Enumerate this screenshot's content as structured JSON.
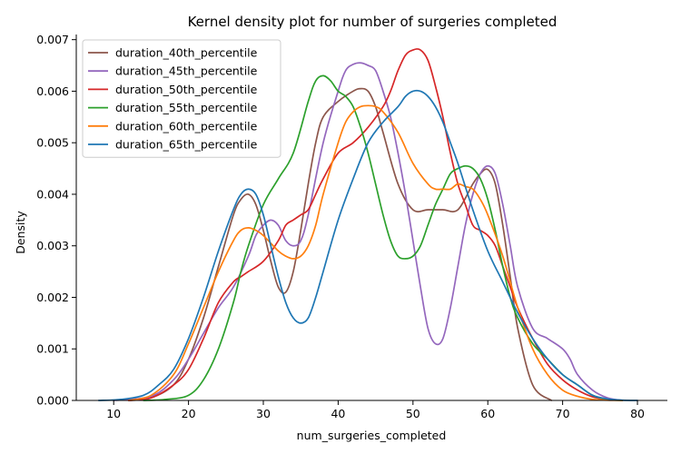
{
  "chart_data": {
    "type": "line",
    "title": "Kernel density plot for number of surgeries completed",
    "xlabel": "num_surgeries_completed",
    "ylabel": "Density",
    "xlim": [
      5,
      84
    ],
    "ylim": [
      0,
      0.0071
    ],
    "xticks": [
      10,
      20,
      30,
      40,
      50,
      60,
      70,
      80
    ],
    "yticks": [
      0.0,
      0.001,
      0.002,
      0.003,
      0.004,
      0.005,
      0.006,
      0.007
    ],
    "ytick_labels": [
      "0.000",
      "0.001",
      "0.002",
      "0.003",
      "0.004",
      "0.005",
      "0.006",
      "0.007"
    ],
    "grid": false,
    "legend_position": "top-left",
    "series": [
      {
        "name": "duration_40th_percentile",
        "color": "#8c564b",
        "x": [
          12,
          15,
          18,
          20,
          22,
          24,
          26,
          27,
          28,
          29,
          30,
          31,
          32,
          33,
          34,
          35,
          36,
          37,
          38,
          40,
          42,
          43,
          44,
          45,
          46,
          48,
          50,
          52,
          54,
          56,
          58,
          59,
          60,
          61,
          62,
          63,
          64,
          66,
          68.5
        ],
        "y": [
          0,
          5e-05,
          0.0003,
          0.0008,
          0.0016,
          0.0026,
          0.0036,
          0.0039,
          0.004,
          0.0038,
          0.0033,
          0.0027,
          0.0022,
          0.0021,
          0.0025,
          0.0033,
          0.0042,
          0.005,
          0.0055,
          0.0058,
          0.006,
          0.00605,
          0.006,
          0.0057,
          0.0052,
          0.0042,
          0.0037,
          0.0037,
          0.0037,
          0.0037,
          0.0042,
          0.0044,
          0.00448,
          0.0042,
          0.0034,
          0.0024,
          0.0014,
          0.0003,
          0
        ]
      },
      {
        "name": "duration_45th_percentile",
        "color": "#9467bd",
        "x": [
          10,
          15,
          18,
          20,
          22,
          24,
          26,
          28,
          29,
          30,
          31,
          32,
          33,
          34,
          35,
          36,
          38,
          40,
          41,
          42,
          43,
          44,
          45,
          46,
          47,
          48,
          49,
          50,
          51,
          52,
          53,
          54,
          55,
          56,
          57,
          58,
          59,
          60,
          61,
          62,
          63,
          64,
          66,
          68,
          70,
          71,
          72,
          74,
          76,
          78
        ],
        "y": [
          0,
          8e-05,
          0.0004,
          0.0008,
          0.0013,
          0.0018,
          0.0022,
          0.0028,
          0.0032,
          0.0034,
          0.0035,
          0.0034,
          0.0031,
          0.003,
          0.0031,
          0.0036,
          0.005,
          0.006,
          0.0064,
          0.00652,
          0.00655,
          0.0065,
          0.0064,
          0.006,
          0.0055,
          0.0048,
          0.004,
          0.0031,
          0.0022,
          0.0014,
          0.0011,
          0.0012,
          0.0018,
          0.0026,
          0.0034,
          0.004,
          0.0044,
          0.00455,
          0.0044,
          0.0038,
          0.003,
          0.0022,
          0.0014,
          0.0012,
          0.001,
          0.0008,
          0.0005,
          0.0002,
          5e-05,
          0
        ]
      },
      {
        "name": "duration_50th_percentile",
        "color": "#d62728",
        "x": [
          12,
          15,
          18,
          20,
          22,
          24,
          26,
          27,
          28,
          30,
          32,
          33,
          34,
          35,
          36,
          37,
          38,
          40,
          42,
          44,
          46,
          47,
          48,
          49,
          50,
          51,
          52,
          53,
          54,
          55,
          56,
          57,
          58,
          59,
          60,
          61,
          62,
          63,
          64,
          66,
          68,
          70,
          72,
          74,
          76,
          78
        ],
        "y": [
          0,
          5e-05,
          0.0003,
          0.0006,
          0.0012,
          0.0019,
          0.0023,
          0.0024,
          0.0025,
          0.0027,
          0.0031,
          0.0034,
          0.0035,
          0.0036,
          0.0037,
          0.004,
          0.0043,
          0.0048,
          0.005,
          0.0053,
          0.0057,
          0.006,
          0.0064,
          0.0067,
          0.0068,
          0.0068,
          0.0066,
          0.0061,
          0.0055,
          0.0048,
          0.0042,
          0.0038,
          0.0034,
          0.0033,
          0.0032,
          0.003,
          0.0026,
          0.0022,
          0.0018,
          0.0012,
          0.0007,
          0.0004,
          0.0002,
          7e-05,
          2e-05,
          0
        ]
      },
      {
        "name": "duration_55th_percentile",
        "color": "#2ca02c",
        "x": [
          14,
          17,
          20,
          22,
          24,
          26,
          27,
          28,
          30,
          32,
          34,
          36,
          37,
          38,
          39,
          40,
          41,
          42,
          43,
          44,
          45,
          46,
          47,
          48,
          49,
          50,
          51,
          52,
          53,
          54,
          55,
          56,
          57,
          58,
          59,
          60,
          61,
          62,
          63,
          64,
          66,
          68,
          70,
          72,
          74,
          76,
          78
        ],
        "y": [
          0,
          2e-05,
          0.0001,
          0.0004,
          0.001,
          0.0019,
          0.0025,
          0.003,
          0.0038,
          0.0043,
          0.0048,
          0.0058,
          0.0062,
          0.0063,
          0.0062,
          0.006,
          0.0059,
          0.0057,
          0.0053,
          0.0048,
          0.0042,
          0.0036,
          0.0031,
          0.0028,
          0.00275,
          0.0028,
          0.003,
          0.0034,
          0.0038,
          0.0041,
          0.0044,
          0.0045,
          0.00455,
          0.0045,
          0.0043,
          0.0039,
          0.0033,
          0.0026,
          0.002,
          0.0016,
          0.0011,
          0.0008,
          0.0005,
          0.0003,
          0.0001,
          2e-05,
          0
        ]
      },
      {
        "name": "duration_60th_percentile",
        "color": "#ff7f0e",
        "x": [
          12,
          15,
          18,
          20,
          22,
          24,
          26,
          27,
          28,
          29,
          30,
          32,
          33,
          34,
          35,
          36,
          37,
          38,
          40,
          41,
          42,
          43,
          44,
          45,
          46,
          48,
          50,
          52,
          53,
          54,
          55,
          56,
          57,
          58,
          59,
          60,
          62,
          64,
          66,
          68,
          70,
          72,
          74,
          76,
          78
        ],
        "y": [
          0,
          0.0001,
          0.0005,
          0.0011,
          0.0018,
          0.0025,
          0.0031,
          0.0033,
          0.00335,
          0.0033,
          0.0032,
          0.0029,
          0.0028,
          0.00275,
          0.0028,
          0.003,
          0.0034,
          0.004,
          0.005,
          0.0054,
          0.0056,
          0.0057,
          0.00572,
          0.0057,
          0.0056,
          0.0052,
          0.0046,
          0.0042,
          0.0041,
          0.0041,
          0.0041,
          0.0042,
          0.00415,
          0.0041,
          0.0039,
          0.0036,
          0.0028,
          0.0018,
          0.001,
          0.0005,
          0.0002,
          8e-05,
          2e-05,
          5e-06,
          0
        ]
      },
      {
        "name": "duration_65th_percentile",
        "color": "#1f77b4",
        "x": [
          8,
          11,
          14,
          16,
          18,
          20,
          22,
          24,
          26,
          27,
          28,
          29,
          30,
          31,
          32,
          33,
          34,
          35,
          36,
          37,
          38,
          40,
          42,
          44,
          46,
          48,
          49,
          50,
          51,
          52,
          53,
          54,
          55,
          56,
          58,
          60,
          62,
          64,
          66,
          68,
          70,
          72,
          74,
          76,
          78,
          80
        ],
        "y": [
          0,
          2e-05,
          0.0001,
          0.0003,
          0.0006,
          0.0012,
          0.002,
          0.0029,
          0.0037,
          0.004,
          0.0041,
          0.004,
          0.0036,
          0.003,
          0.0024,
          0.0019,
          0.0016,
          0.0015,
          0.0016,
          0.002,
          0.0025,
          0.0035,
          0.0043,
          0.005,
          0.0054,
          0.0057,
          0.0059,
          0.006,
          0.006,
          0.0059,
          0.0057,
          0.0054,
          0.005,
          0.0046,
          0.0037,
          0.0029,
          0.0023,
          0.0017,
          0.0012,
          0.0008,
          0.0005,
          0.0003,
          0.0001,
          3e-05,
          5e-06,
          0
        ]
      }
    ]
  }
}
